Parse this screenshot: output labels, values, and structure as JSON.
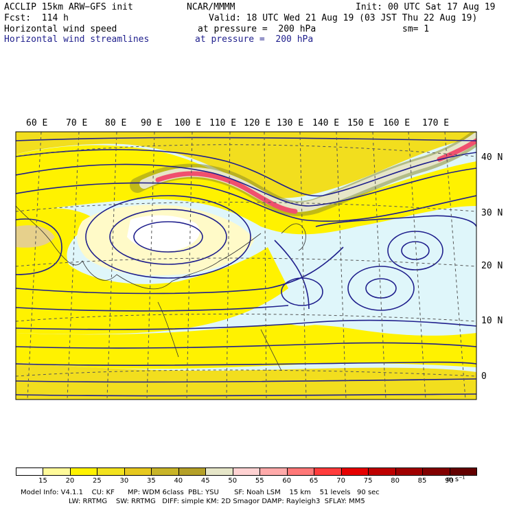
{
  "header": {
    "model": "ACCLIP 15km ARW−GFS init",
    "org": "NCAR/MMMM",
    "init": "Init: 00 UTC Sat 17 Aug 19",
    "fcst": "Fcst:  114 h",
    "valid": "Valid: 18 UTC Wed 21 Aug 19 (03 JST Thu 22 Aug 19)",
    "field1": "Horizontal wind speed",
    "pressure1": "at pressure =  200 hPa",
    "sm": "sm= 1",
    "field2": "Horizontal wind streamlines",
    "pressure2": "at pressure =  200 hPa"
  },
  "map": {
    "lon_labels": [
      "60 E",
      "70 E",
      "80 E",
      "90 E",
      "100 E",
      "110 E",
      "120 E",
      "130 E",
      "140 E",
      "150 E",
      "160 E",
      "170 E"
    ],
    "lat_labels": [
      "40 N",
      "30 N",
      "20 N",
      "10 N",
      "0"
    ],
    "colors": {
      "background": "#dff6fa",
      "streamline": "#1e1e8c",
      "jet_core": "#f0506e",
      "speed_25": "#fff200",
      "speed_30": "#f2de1e"
    }
  },
  "colorbar": {
    "ticks": [
      "15",
      "20",
      "25",
      "30",
      "35",
      "40",
      "45",
      "50",
      "55",
      "60",
      "65",
      "70",
      "75",
      "80",
      "85",
      "90"
    ],
    "colors": [
      "#ffffff",
      "#fffa9a",
      "#fff200",
      "#f2e21e",
      "#e6c81e",
      "#c8b428",
      "#b4a028",
      "#e6e6c8",
      "#ffd2d2",
      "#ffaaaa",
      "#ff7878",
      "#ff3c3c",
      "#e60000",
      "#be0000",
      "#a00000",
      "#820000",
      "#640000"
    ],
    "units": "m s⁻¹"
  },
  "footer": {
    "line1": "Model Info: V4.1.1    CU: KF      MP: WDM 6class  PBL: YSU       SF: Noah LSM    15 km    51 levels   90 sec",
    "line2": "LW: RRTMG    SW: RRTMG   DIFF: simple KM: 2D Smagor DAMP: Rayleigh3  SFLAY: MM5"
  }
}
